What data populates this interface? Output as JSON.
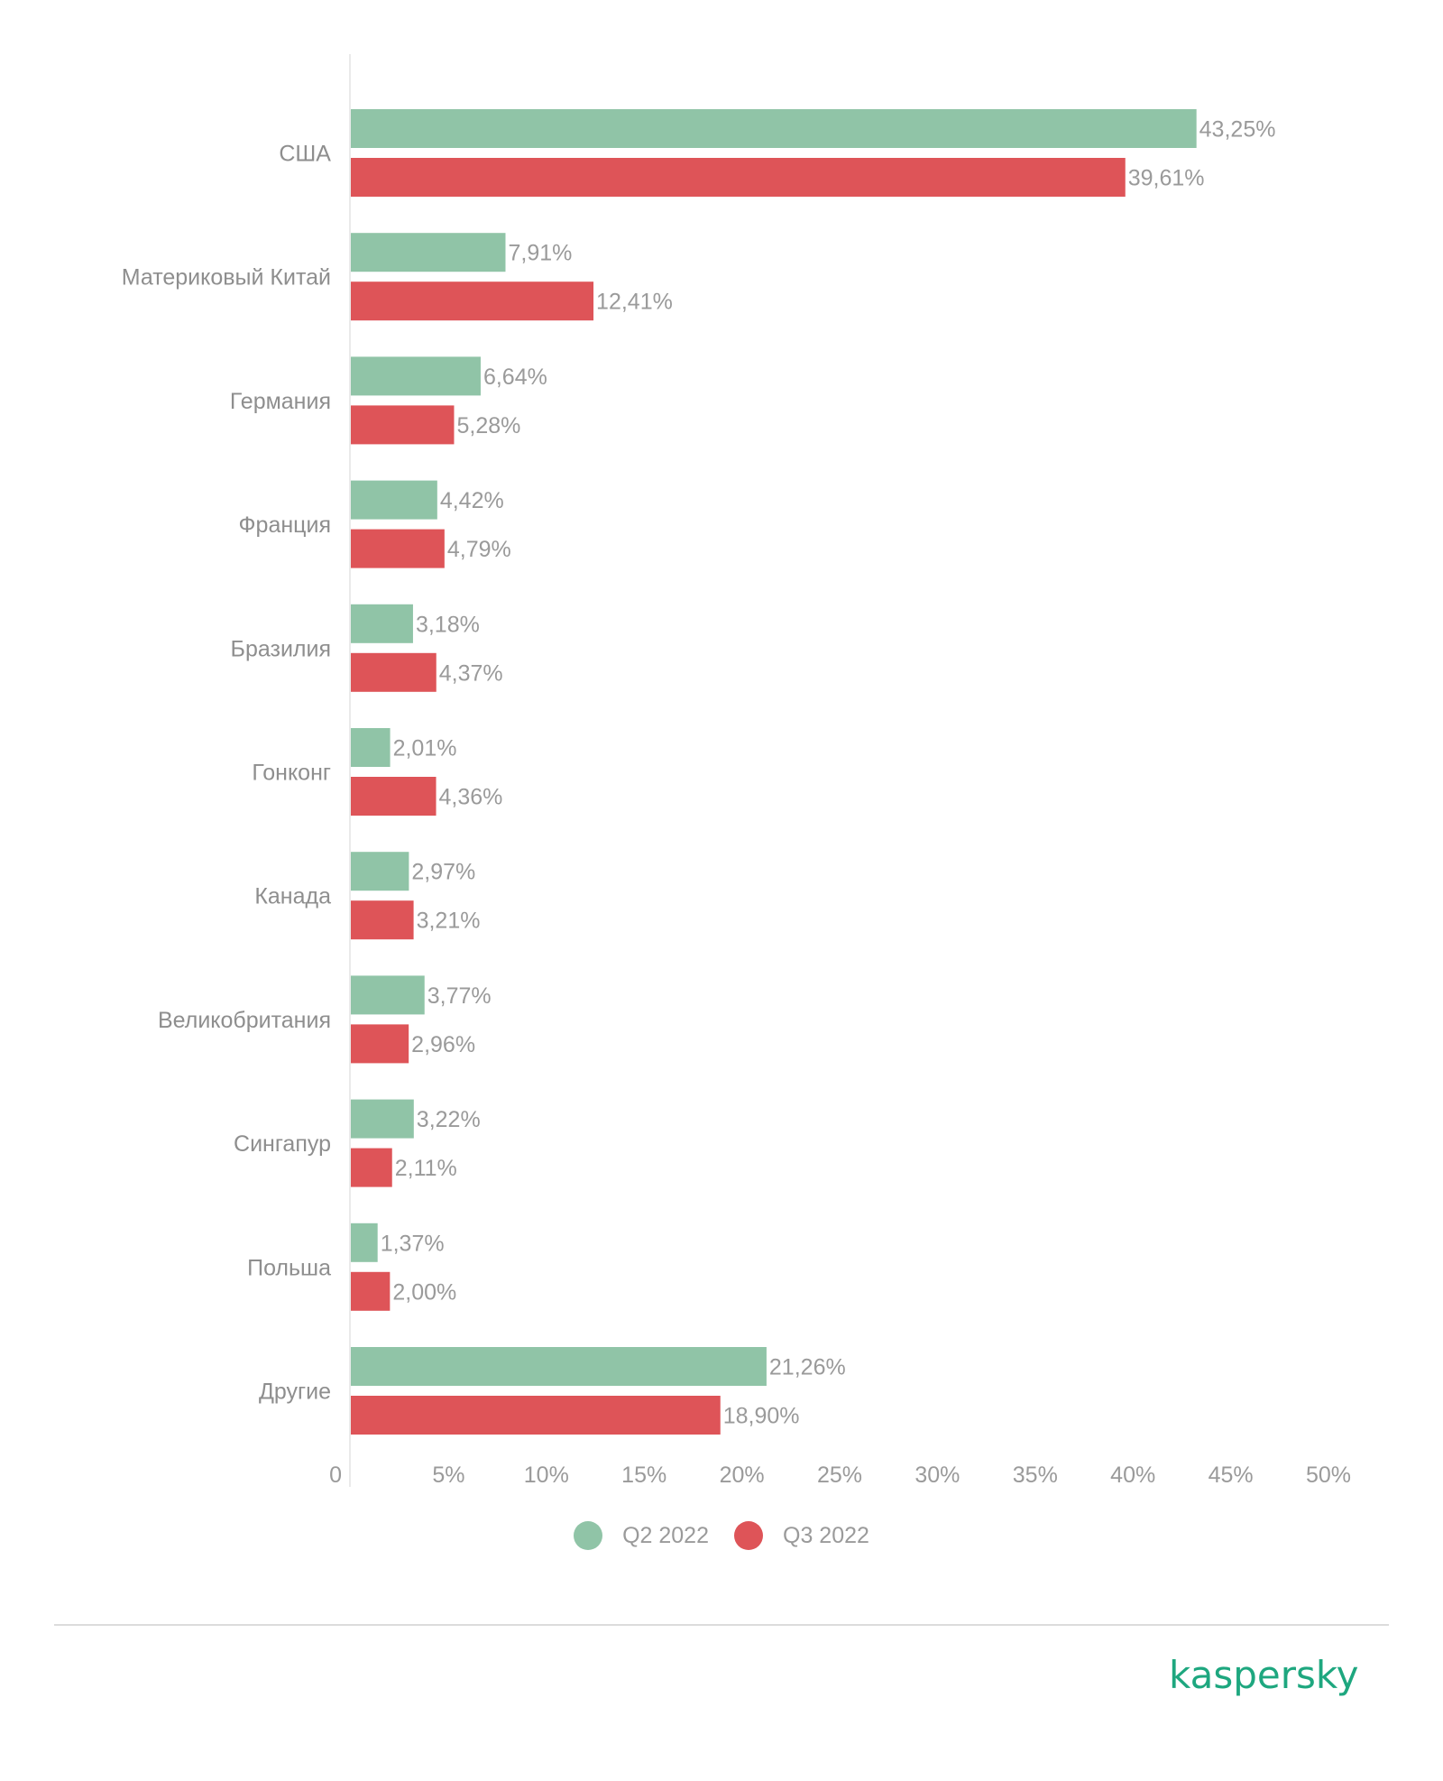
{
  "chart_data": {
    "type": "bar",
    "orientation": "horizontal",
    "categories": [
      "США",
      "Материковый Китай",
      "Германия",
      "Франция",
      "Бразилия",
      "Гонконг",
      "Канада",
      "Великобритания",
      "Сингапур",
      "Польша",
      "Другие"
    ],
    "series": [
      {
        "name": "Q2 2022",
        "color": "#90c4a7",
        "values": [
          43.25,
          7.91,
          6.64,
          4.42,
          3.18,
          2.01,
          2.97,
          3.77,
          3.22,
          1.37,
          21.26
        ],
        "labels": [
          "43,25%",
          "7,91%",
          "6,64%",
          "4,42%",
          "3,18%",
          "2,01%",
          "2,97%",
          "3,77%",
          "3,22%",
          "1,37%",
          "21,26%"
        ]
      },
      {
        "name": "Q3 2022",
        "color": "#de5458",
        "values": [
          39.61,
          12.41,
          5.28,
          4.79,
          4.37,
          4.36,
          3.21,
          2.96,
          2.11,
          2.0,
          18.9
        ],
        "labels": [
          "39,61%",
          "12,41%",
          "5,28%",
          "4,79%",
          "4,37%",
          "4,36%",
          "3,21%",
          "2,96%",
          "2,11%",
          "2,00%",
          "18,90%"
        ]
      }
    ],
    "xlim": [
      0,
      50
    ],
    "xticks": [
      0,
      5,
      10,
      15,
      20,
      25,
      30,
      35,
      40,
      45,
      50
    ],
    "xtick_labels": [
      "0",
      "5%",
      "10%",
      "15%",
      "20%",
      "25%",
      "30%",
      "35%",
      "40%",
      "45%",
      "50%"
    ],
    "grid": false,
    "legend": "bottom-center"
  },
  "brand": {
    "logo_text": "kaspersky",
    "logo_color": "#1ea77f"
  }
}
